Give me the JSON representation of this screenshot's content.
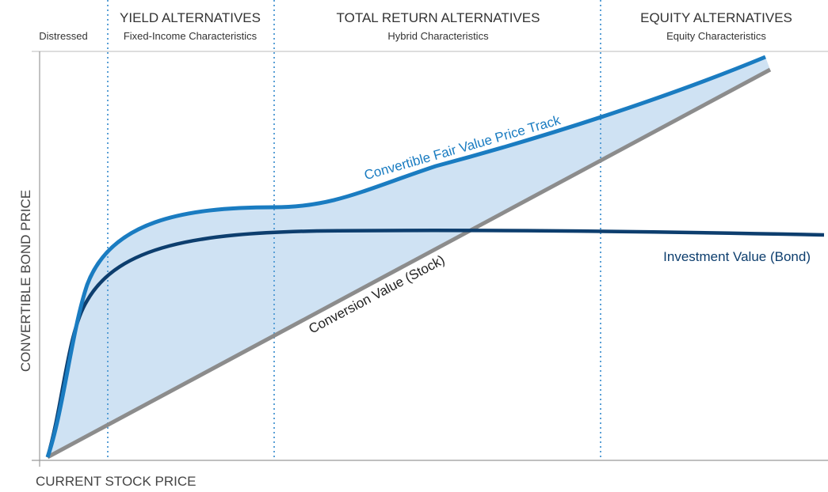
{
  "zones": [
    {
      "title": "Distressed"
    },
    {
      "title": "YIELD ALTERNATIVES",
      "subtitle": "Fixed-Income Characteristics"
    },
    {
      "title": "TOTAL RETURN ALTERNATIVES",
      "subtitle": "Hybrid Characteristics"
    },
    {
      "title": "EQUITY ALTERNATIVES",
      "subtitle": "Equity Characteristics"
    }
  ],
  "curves": {
    "fair_value": "Convertible Fair Value Price Track",
    "investment_value": "Investment Value (Bond)",
    "conversion_value": "Conversion Value (Stock)"
  },
  "axes": {
    "y_label": "CONVERTIBLE BOND PRICE",
    "x_label": "CURRENT STOCK PRICE"
  }
}
